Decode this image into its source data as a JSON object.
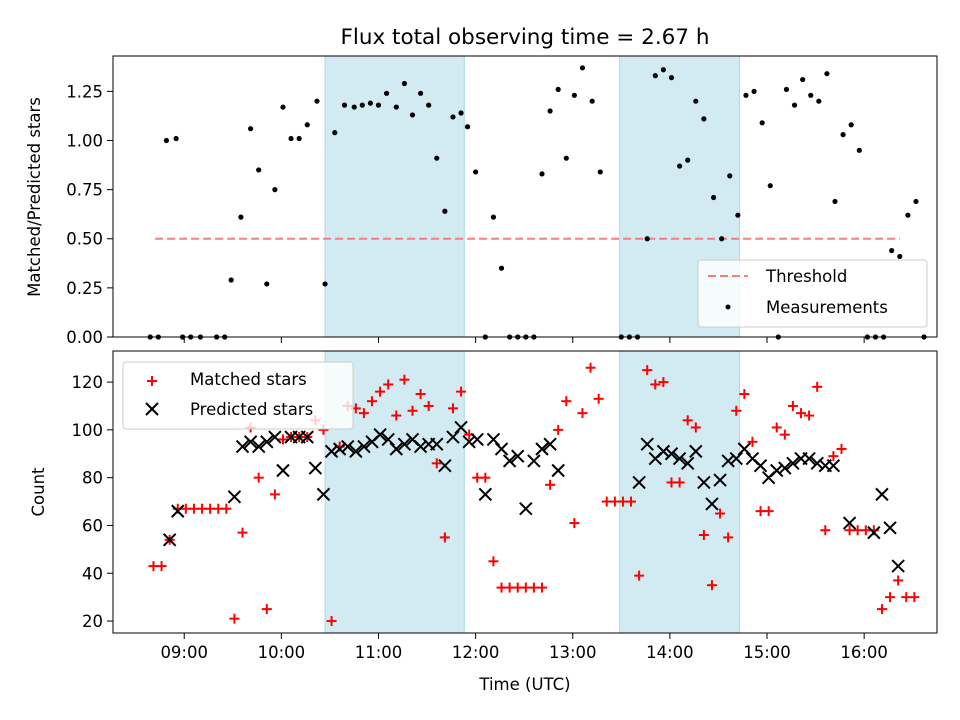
{
  "chart_data": [
    {
      "type": "scatter",
      "title": "Flux total observing time = 2.67 h",
      "xlabel": "",
      "ylabel": "Matched/Predicted stars",
      "ylim": [
        0,
        1.43
      ],
      "xlim": [
        "08:16",
        "16:45"
      ],
      "yticks": [
        "0.00",
        "0.25",
        "0.50",
        "0.75",
        "1.00",
        "1.25"
      ],
      "shaded_intervals": [
        [
          "10:27",
          "11:53"
        ],
        [
          "13:29",
          "14:43"
        ]
      ],
      "legend_position": "lower right",
      "threshold": {
        "name": "Threshold",
        "y": 0.5,
        "x_start": "08:42",
        "x_end": "16:22",
        "color": "#f08080"
      },
      "series": [
        {
          "name": "Measurements",
          "color": "#000000",
          "points": [
            [
              "08:39",
              0
            ],
            [
              "08:44",
              0
            ],
            [
              "08:49",
              1.0
            ],
            [
              "08:55",
              1.01
            ],
            [
              "08:59",
              0
            ],
            [
              "09:04",
              0
            ],
            [
              "09:10",
              0
            ],
            [
              "09:20",
              0
            ],
            [
              "09:25",
              0
            ],
            [
              "09:29",
              0.29
            ],
            [
              "09:35",
              0.61
            ],
            [
              "09:41",
              1.06
            ],
            [
              "09:46",
              0.85
            ],
            [
              "09:51",
              0.27
            ],
            [
              "09:56",
              0.75
            ],
            [
              "10:01",
              1.17
            ],
            [
              "10:06",
              1.01
            ],
            [
              "10:11",
              1.01
            ],
            [
              "10:16",
              1.08
            ],
            [
              "10:22",
              1.2
            ],
            [
              "10:27",
              0.27
            ],
            [
              "10:33",
              1.04
            ],
            [
              "10:39",
              1.18
            ],
            [
              "10:45",
              1.17
            ],
            [
              "10:50",
              1.18
            ],
            [
              "10:55",
              1.19
            ],
            [
              "11:00",
              1.18
            ],
            [
              "11:05",
              1.24
            ],
            [
              "11:11",
              1.17
            ],
            [
              "11:16",
              1.29
            ],
            [
              "11:21",
              1.13
            ],
            [
              "11:26",
              1.24
            ],
            [
              "11:31",
              1.18
            ],
            [
              "11:36",
              0.91
            ],
            [
              "11:41",
              0.64
            ],
            [
              "11:46",
              1.12
            ],
            [
              "11:51",
              1.14
            ],
            [
              "11:55",
              1.07
            ],
            [
              "12:00",
              0.84
            ],
            [
              "12:06",
              0
            ],
            [
              "12:11",
              0.61
            ],
            [
              "12:16",
              0.35
            ],
            [
              "12:21",
              0
            ],
            [
              "12:26",
              0
            ],
            [
              "12:31",
              0
            ],
            [
              "12:36",
              0
            ],
            [
              "12:41",
              0.83
            ],
            [
              "12:46",
              1.15
            ],
            [
              "12:51",
              1.26
            ],
            [
              "12:56",
              0.91
            ],
            [
              "13:01",
              1.23
            ],
            [
              "13:06",
              1.37
            ],
            [
              "13:12",
              1.2
            ],
            [
              "13:17",
              0.84
            ],
            [
              "13:30",
              0
            ],
            [
              "13:35",
              0
            ],
            [
              "13:40",
              0
            ],
            [
              "13:46",
              0.5
            ],
            [
              "13:51",
              1.33
            ],
            [
              "13:56",
              1.36
            ],
            [
              "14:01",
              1.32
            ],
            [
              "14:06",
              0.87
            ],
            [
              "14:11",
              0.9
            ],
            [
              "14:16",
              1.2
            ],
            [
              "14:21",
              1.11
            ],
            [
              "14:27",
              0.71
            ],
            [
              "14:32",
              0.5
            ],
            [
              "14:37",
              0.82
            ],
            [
              "14:42",
              0.62
            ],
            [
              "14:47",
              1.23
            ],
            [
              "14:52",
              1.25
            ],
            [
              "14:57",
              1.09
            ],
            [
              "15:02",
              0.77
            ],
            [
              "15:07",
              0
            ],
            [
              "15:12",
              1.26
            ],
            [
              "15:17",
              1.18
            ],
            [
              "15:22",
              1.31
            ],
            [
              "15:27",
              1.23
            ],
            [
              "15:32",
              1.2
            ],
            [
              "15:37",
              1.34
            ],
            [
              "15:42",
              0.69
            ],
            [
              "15:47",
              1.03
            ],
            [
              "15:52",
              1.08
            ],
            [
              "15:57",
              0.95
            ],
            [
              "16:02",
              0
            ],
            [
              "16:07",
              0
            ],
            [
              "16:12",
              0
            ],
            [
              "16:17",
              0.44
            ],
            [
              "16:22",
              0.41
            ],
            [
              "16:27",
              0.62
            ],
            [
              "16:32",
              0.69
            ],
            [
              "16:37",
              0
            ]
          ]
        }
      ]
    },
    {
      "type": "scatter",
      "title": "",
      "xlabel": "Time (UTC)",
      "ylabel": "Count",
      "ylim": [
        15,
        133
      ],
      "xlim": [
        "08:16",
        "16:45"
      ],
      "yticks": [
        "20",
        "40",
        "60",
        "80",
        "100",
        "120"
      ],
      "xticks": [
        "09:00",
        "10:00",
        "11:00",
        "12:00",
        "13:00",
        "14:00",
        "15:00",
        "16:00"
      ],
      "shaded_intervals": [
        [
          "10:27",
          "11:53"
        ],
        [
          "13:29",
          "14:43"
        ]
      ],
      "legend_position": "upper left",
      "series": [
        {
          "name": "Matched stars",
          "marker": "+",
          "color": "#ff0000",
          "points": [
            [
              "08:41",
              43
            ],
            [
              "08:46",
              43
            ],
            [
              "08:51",
              54
            ],
            [
              "08:56",
              67
            ],
            [
              "09:01",
              67
            ],
            [
              "09:06",
              67
            ],
            [
              "09:11",
              67
            ],
            [
              "09:16",
              67
            ],
            [
              "09:21",
              67
            ],
            [
              "09:26",
              67
            ],
            [
              "09:31",
              21
            ],
            [
              "09:36",
              57
            ],
            [
              "09:41",
              101
            ],
            [
              "09:46",
              80
            ],
            [
              "09:51",
              25
            ],
            [
              "09:56",
              73
            ],
            [
              "10:01",
              96
            ],
            [
              "10:06",
              97
            ],
            [
              "10:11",
              97
            ],
            [
              "10:16",
              97
            ],
            [
              "10:21",
              104
            ],
            [
              "10:26",
              100
            ],
            [
              "10:31",
              20
            ],
            [
              "10:36",
              93
            ],
            [
              "10:41",
              110
            ],
            [
              "10:46",
              109
            ],
            [
              "10:51",
              107
            ],
            [
              "10:56",
              112
            ],
            [
              "11:01",
              116
            ],
            [
              "11:06",
              119
            ],
            [
              "11:11",
              106
            ],
            [
              "11:16",
              121
            ],
            [
              "11:21",
              108
            ],
            [
              "11:26",
              115
            ],
            [
              "11:31",
              110
            ],
            [
              "11:36",
              86
            ],
            [
              "11:41",
              55
            ],
            [
              "11:46",
              109
            ],
            [
              "11:51",
              116
            ],
            [
              "11:56",
              98
            ],
            [
              "12:01",
              80
            ],
            [
              "12:06",
              80
            ],
            [
              "12:11",
              45
            ],
            [
              "12:16",
              34
            ],
            [
              "12:21",
              34
            ],
            [
              "12:26",
              34
            ],
            [
              "12:31",
              34
            ],
            [
              "12:36",
              34
            ],
            [
              "12:41",
              34
            ],
            [
              "12:46",
              77
            ],
            [
              "12:51",
              100
            ],
            [
              "12:56",
              112
            ],
            [
              "13:01",
              61
            ],
            [
              "13:06",
              107
            ],
            [
              "13:11",
              126
            ],
            [
              "13:16",
              113
            ],
            [
              "13:21",
              70
            ],
            [
              "13:26",
              70
            ],
            [
              "13:31",
              70
            ],
            [
              "13:36",
              70
            ],
            [
              "13:41",
              39
            ],
            [
              "13:46",
              125
            ],
            [
              "13:51",
              119
            ],
            [
              "13:56",
              120
            ],
            [
              "14:01",
              78
            ],
            [
              "14:06",
              78
            ],
            [
              "14:11",
              104
            ],
            [
              "14:16",
              101
            ],
            [
              "14:21",
              56
            ],
            [
              "14:26",
              35
            ],
            [
              "14:31",
              65
            ],
            [
              "14:36",
              55
            ],
            [
              "14:41",
              108
            ],
            [
              "14:46",
              115
            ],
            [
              "14:51",
              95
            ],
            [
              "14:56",
              66
            ],
            [
              "15:01",
              66
            ],
            [
              "15:06",
              101
            ],
            [
              "15:11",
              98
            ],
            [
              "15:16",
              110
            ],
            [
              "15:21",
              107
            ],
            [
              "15:26",
              106
            ],
            [
              "15:31",
              118
            ],
            [
              "15:36",
              58
            ],
            [
              "15:41",
              89
            ],
            [
              "15:46",
              92
            ],
            [
              "15:51",
              58
            ],
            [
              "15:56",
              58
            ],
            [
              "16:01",
              58
            ],
            [
              "16:06",
              58
            ],
            [
              "16:11",
              25
            ],
            [
              "16:16",
              30
            ],
            [
              "16:21",
              37
            ],
            [
              "16:26",
              30
            ],
            [
              "16:31",
              30
            ]
          ]
        },
        {
          "name": "Predicted stars",
          "marker": "x",
          "color": "#000000",
          "points": [
            [
              "08:51",
              54
            ],
            [
              "08:56",
              66
            ],
            [
              "09:31",
              72
            ],
            [
              "09:36",
              93
            ],
            [
              "09:41",
              95
            ],
            [
              "09:46",
              93
            ],
            [
              "09:51",
              95
            ],
            [
              "09:56",
              97
            ],
            [
              "10:01",
              83
            ],
            [
              "10:06",
              97
            ],
            [
              "10:11",
              97
            ],
            [
              "10:16",
              97
            ],
            [
              "10:21",
              84
            ],
            [
              "10:26",
              73
            ],
            [
              "10:31",
              91
            ],
            [
              "10:36",
              92
            ],
            [
              "10:41",
              93
            ],
            [
              "10:46",
              91
            ],
            [
              "10:51",
              93
            ],
            [
              "10:56",
              95
            ],
            [
              "11:01",
              98
            ],
            [
              "11:06",
              96
            ],
            [
              "11:11",
              92
            ],
            [
              "11:16",
              94
            ],
            [
              "11:21",
              96
            ],
            [
              "11:26",
              93
            ],
            [
              "11:31",
              94
            ],
            [
              "11:36",
              94
            ],
            [
              "11:41",
              85
            ],
            [
              "11:46",
              97
            ],
            [
              "11:51",
              101
            ],
            [
              "11:56",
              95
            ],
            [
              "12:01",
              96
            ],
            [
              "12:06",
              73
            ],
            [
              "12:11",
              96
            ],
            [
              "12:16",
              92
            ],
            [
              "12:21",
              87
            ],
            [
              "12:26",
              89
            ],
            [
              "12:31",
              67
            ],
            [
              "12:36",
              87
            ],
            [
              "12:41",
              92
            ],
            [
              "12:46",
              94
            ],
            [
              "12:51",
              83
            ],
            [
              "13:41",
              78
            ],
            [
              "13:46",
              94
            ],
            [
              "13:51",
              88
            ],
            [
              "13:56",
              91
            ],
            [
              "14:01",
              90
            ],
            [
              "14:06",
              88
            ],
            [
              "14:11",
              86
            ],
            [
              "14:16",
              91
            ],
            [
              "14:21",
              78
            ],
            [
              "14:26",
              69
            ],
            [
              "14:31",
              79
            ],
            [
              "14:36",
              87
            ],
            [
              "14:41",
              88
            ],
            [
              "14:46",
              92
            ],
            [
              "14:51",
              88
            ],
            [
              "14:56",
              85
            ],
            [
              "15:01",
              80
            ],
            [
              "15:06",
              83
            ],
            [
              "15:11",
              84
            ],
            [
              "15:16",
              86
            ],
            [
              "15:21",
              88
            ],
            [
              "15:26",
              88
            ],
            [
              "15:31",
              86
            ],
            [
              "15:36",
              85
            ],
            [
              "15:41",
              85
            ],
            [
              "15:51",
              61
            ],
            [
              "16:06",
              57
            ],
            [
              "16:11",
              73
            ],
            [
              "16:16",
              59
            ],
            [
              "16:21",
              43
            ]
          ]
        }
      ]
    }
  ]
}
